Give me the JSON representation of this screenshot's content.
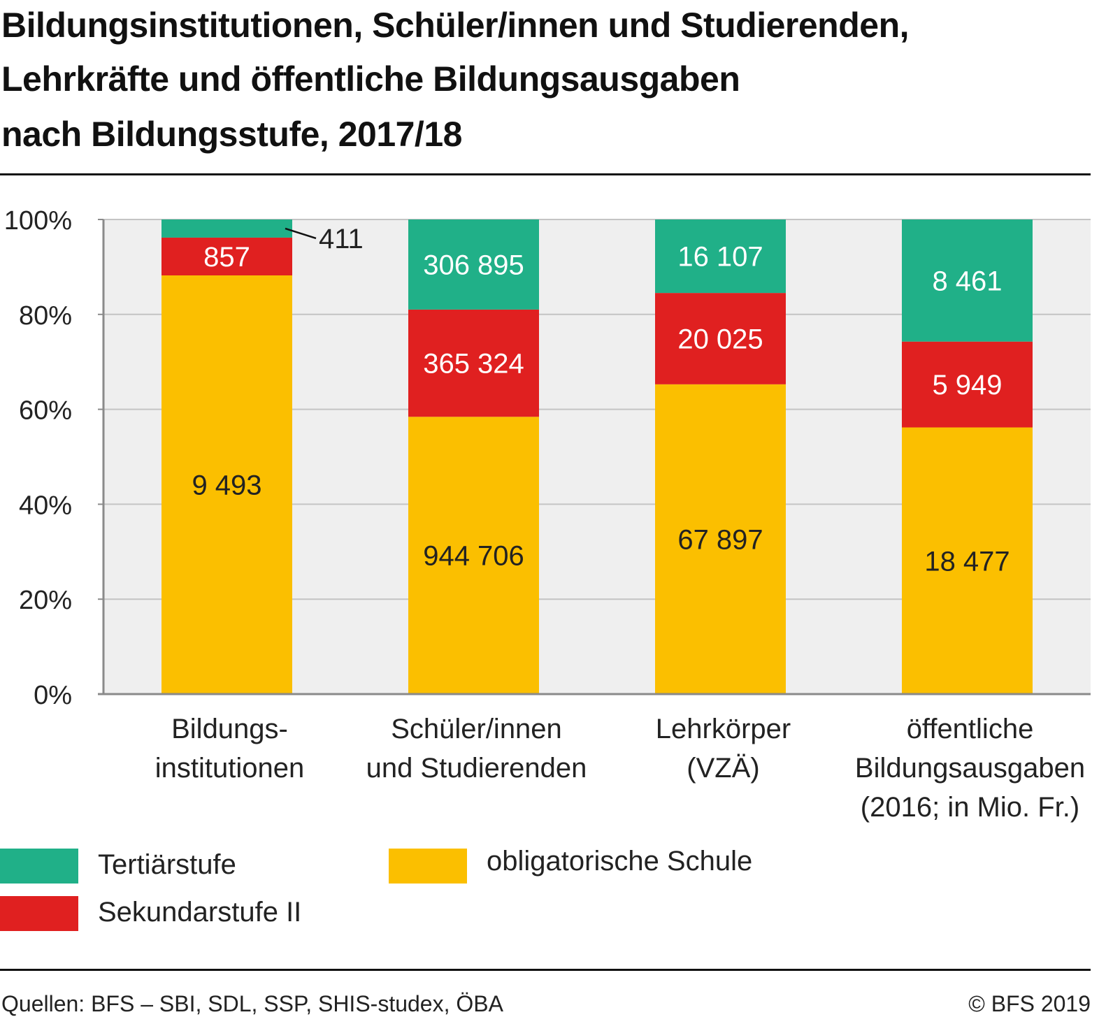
{
  "title": {
    "lines": [
      "Bildungsinstitutionen, Schüler/innen und Studierenden,",
      "Lehrkräfte und öffentliche Bildungsausgaben",
      "nach Bildungsstufe, 2017/18"
    ]
  },
  "colors": {
    "tertiaer": "#20b088",
    "sekundar": "#e02020",
    "obligatorisch": "#fbbf00",
    "plot_bg": "#efefef",
    "grid": "#c4c4c4",
    "axis": "#8a8a8a"
  },
  "chart_data": {
    "type": "bar",
    "stacked": "percent",
    "categories": [
      [
        "Bildungs-",
        "institutionen"
      ],
      [
        "Schüler/innen",
        "und Studierenden"
      ],
      [
        "Lehrkörper",
        "(VZÄ)"
      ],
      [
        "öffentliche",
        "Bildungsausgaben",
        "(2016; in Mio. Fr.)"
      ]
    ],
    "series": [
      {
        "name": "obligatorische Schule",
        "color_key": "obligatorisch",
        "values": [
          9493,
          944706,
          67897,
          18477
        ],
        "labels": [
          "9 493",
          "944 706",
          "67 897",
          "18 477"
        ]
      },
      {
        "name": "Sekundarstufe II",
        "color_key": "sekundar",
        "values": [
          857,
          365324,
          20025,
          5949
        ],
        "labels": [
          "857",
          "365 324",
          "20 025",
          "5 949"
        ]
      },
      {
        "name": "Tertiärstufe",
        "color_key": "tertiaer",
        "values": [
          411,
          306895,
          16107,
          8461
        ],
        "labels": [
          "411",
          "306 895",
          "16 107",
          "8 461"
        ]
      }
    ],
    "ylim": [
      0,
      100
    ],
    "yticks": [
      "0%",
      "20%",
      "40%",
      "60%",
      "80%",
      "100%"
    ],
    "grid": true,
    "legend_position": "bottom-left"
  },
  "legend": [
    {
      "label": "Tertiärstufe",
      "color_key": "tertiaer"
    },
    {
      "label": "Sekundarstufe II",
      "color_key": "sekundar"
    },
    {
      "label": "obligatorische Schule",
      "color_key": "obligatorisch"
    }
  ],
  "footer": {
    "source": "Quellen: BFS – SBI, SDL, SSP, SHIS-studex, ÖBA",
    "copyright": "© BFS 2019"
  }
}
